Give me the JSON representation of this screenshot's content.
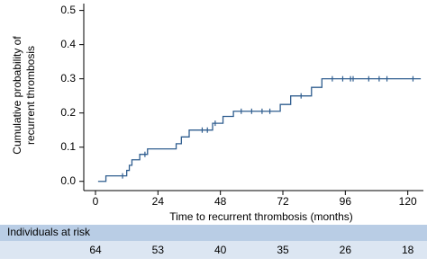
{
  "chart_data": {
    "type": "step",
    "y_label": [
      "Cumulative probability of",
      "recurrent thrombosis"
    ],
    "x_label": "Time to recurrent thrombosis (months)",
    "xlim": [
      -4.5,
      126
    ],
    "xticks": [
      0,
      24,
      48,
      72,
      96,
      120
    ],
    "ylim": [
      -0.027,
      0.52
    ],
    "yticks": [
      {
        "value": 0,
        "label": "0.0"
      },
      0.1,
      0.2,
      0.3,
      0.4,
      0.5
    ],
    "color": "#2f5d8f",
    "x": [
      1,
      4,
      12,
      13,
      14,
      17,
      20,
      31,
      33,
      36,
      45,
      49,
      53,
      71,
      75,
      83,
      87,
      125
    ],
    "values": [
      0,
      0.016,
      0.032,
      0.047,
      0.063,
      0.079,
      0.095,
      0.11,
      0.13,
      0.15,
      0.17,
      0.19,
      0.205,
      0.225,
      0.25,
      0.275,
      0.3,
      0.3
    ],
    "censored": {
      "x": [
        10.4,
        19,
        41,
        43,
        46,
        56,
        60,
        64,
        67,
        79,
        91,
        95,
        98,
        99,
        105,
        109,
        112,
        122
      ],
      "values": [
        0.016,
        0.079,
        0.15,
        0.15,
        0.17,
        0.205,
        0.205,
        0.205,
        0.205,
        0.25,
        0.3,
        0.3,
        0.3,
        0.3,
        0.3,
        0.3,
        0.3,
        0.3
      ]
    },
    "risk_table": {
      "title": "Individuals at risk",
      "counts": [
        64,
        53,
        40,
        35,
        26,
        18
      ]
    }
  }
}
